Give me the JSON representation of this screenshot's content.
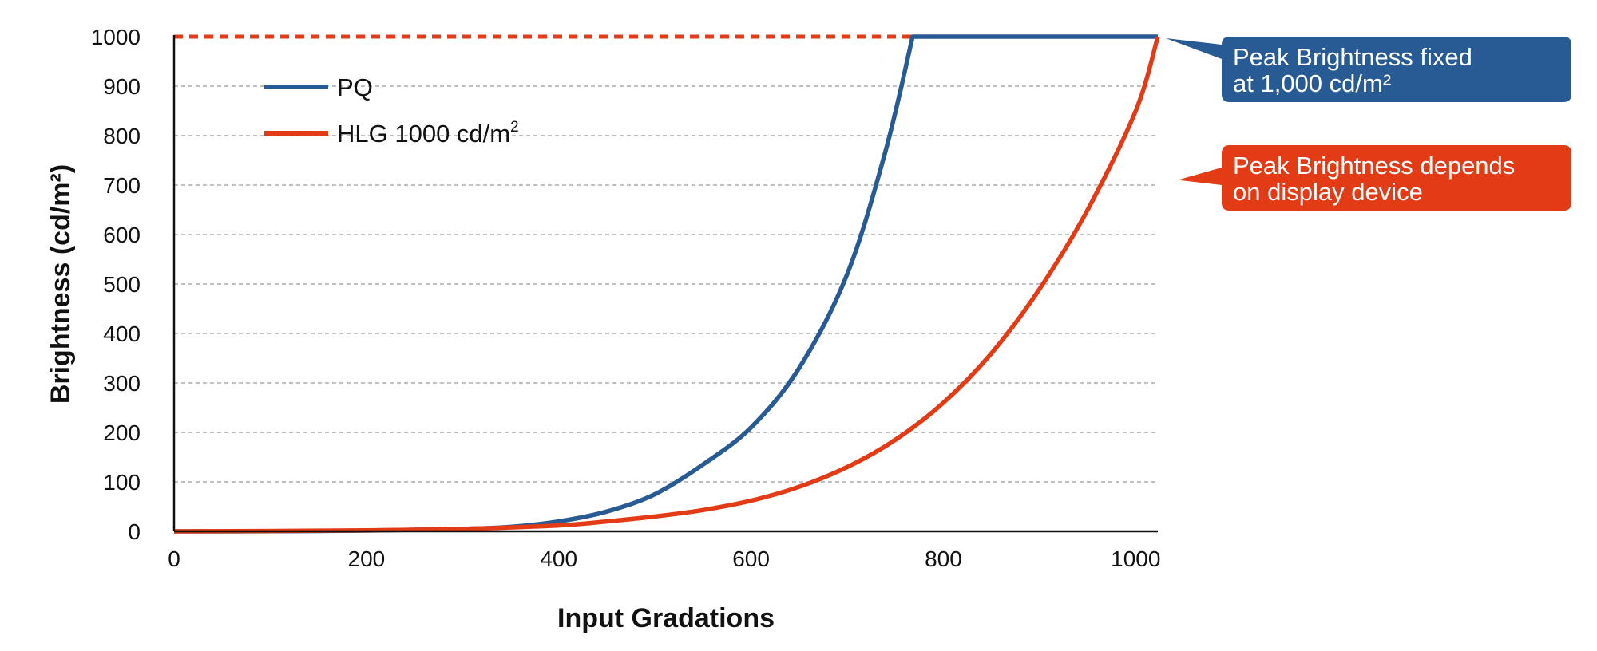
{
  "chart_data": {
    "type": "line",
    "xlabel": "Input Gradations",
    "ylabel": "Brightness (cd/m²)",
    "xlim": [
      0,
      1023
    ],
    "ylim": [
      0,
      1000
    ],
    "x_ticks": [
      "0",
      "200",
      "400",
      "600",
      "800",
      "1000"
    ],
    "y_ticks": [
      "0",
      "100",
      "200",
      "300",
      "400",
      "500",
      "600",
      "700",
      "800",
      "900",
      "1000"
    ],
    "grid": "horizontal dashed",
    "legend_position": "top-left",
    "series": [
      {
        "name": "PQ",
        "color": "#285A94",
        "points": [
          [
            0,
            0
          ],
          [
            100,
            0.3
          ],
          [
            200,
            1.6
          ],
          [
            300,
            5
          ],
          [
            350,
            9
          ],
          [
            400,
            20
          ],
          [
            450,
            40
          ],
          [
            500,
            75
          ],
          [
            550,
            135
          ],
          [
            600,
            210
          ],
          [
            650,
            330
          ],
          [
            700,
            520
          ],
          [
            740,
            770
          ],
          [
            768,
            1000
          ],
          [
            1023,
            1000
          ]
        ]
      },
      {
        "name": "HLG 1000 cd/m",
        "name_superscript": "2",
        "color": "#E33B16",
        "points": [
          [
            0,
            0
          ],
          [
            200,
            2
          ],
          [
            300,
            5
          ],
          [
            400,
            12
          ],
          [
            450,
            20
          ],
          [
            500,
            30
          ],
          [
            550,
            43
          ],
          [
            600,
            62
          ],
          [
            650,
            90
          ],
          [
            700,
            130
          ],
          [
            750,
            185
          ],
          [
            800,
            260
          ],
          [
            850,
            360
          ],
          [
            900,
            490
          ],
          [
            950,
            650
          ],
          [
            1000,
            850
          ],
          [
            1023,
            1000
          ]
        ]
      }
    ],
    "reference_line": {
      "y": 1000,
      "style": "dotted",
      "color": "#E33B16"
    },
    "annotations": [
      {
        "lines": [
          "Peak Brightness fixed",
          "at 1,000 cd/m²"
        ],
        "color": "#285A94",
        "points_to": [
          1023,
          1000
        ]
      },
      {
        "lines": [
          "Peak Brightness depends",
          "on display device"
        ],
        "color": "#E33B16",
        "points_to": [
          1023,
          720
        ]
      }
    ]
  }
}
